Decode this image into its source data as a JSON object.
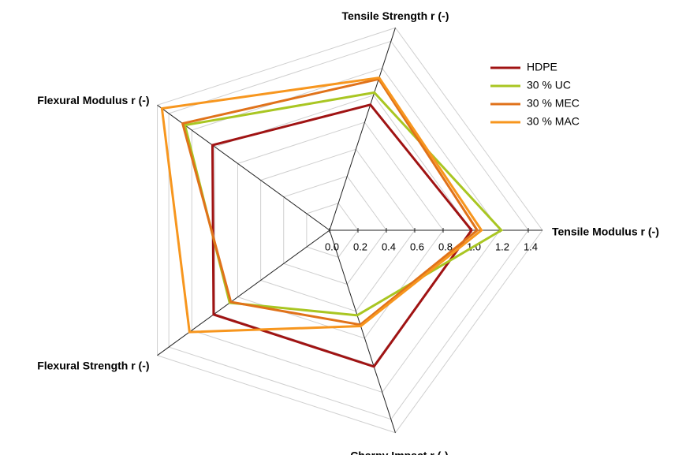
{
  "chart_data": {
    "type": "radar",
    "categories": [
      "Tensile Modulus r (-)",
      "Tensile Strength r (-)",
      "Flexural Modulus r (-)",
      "Flexural Strength r (-)",
      "Charpy Impact r (-)"
    ],
    "series": [
      {
        "name": "HDPE",
        "color": "#a01313",
        "values": [
          1.0,
          0.93,
          1.02,
          1.01,
          1.01
        ]
      },
      {
        "name": "30 % UC",
        "color": "#a9c622",
        "values": [
          1.21,
          1.02,
          1.26,
          0.87,
          0.63
        ]
      },
      {
        "name": "30 % MEC",
        "color": "#e0721a",
        "values": [
          1.04,
          1.12,
          1.28,
          0.86,
          0.7
        ]
      },
      {
        "name": "30 % MAC",
        "color": "#f7961e",
        "values": [
          1.07,
          1.13,
          1.46,
          1.22,
          0.71
        ]
      }
    ],
    "rlim": [
      0,
      1.5
    ],
    "rticks": [
      {
        "value": 0,
        "label": "0.0"
      },
      0.2,
      0.4,
      0.6,
      0.8,
      {
        "value": 1,
        "label": "1.0"
      },
      1.2,
      1.4
    ],
    "grid": true,
    "legend": "upper right"
  }
}
